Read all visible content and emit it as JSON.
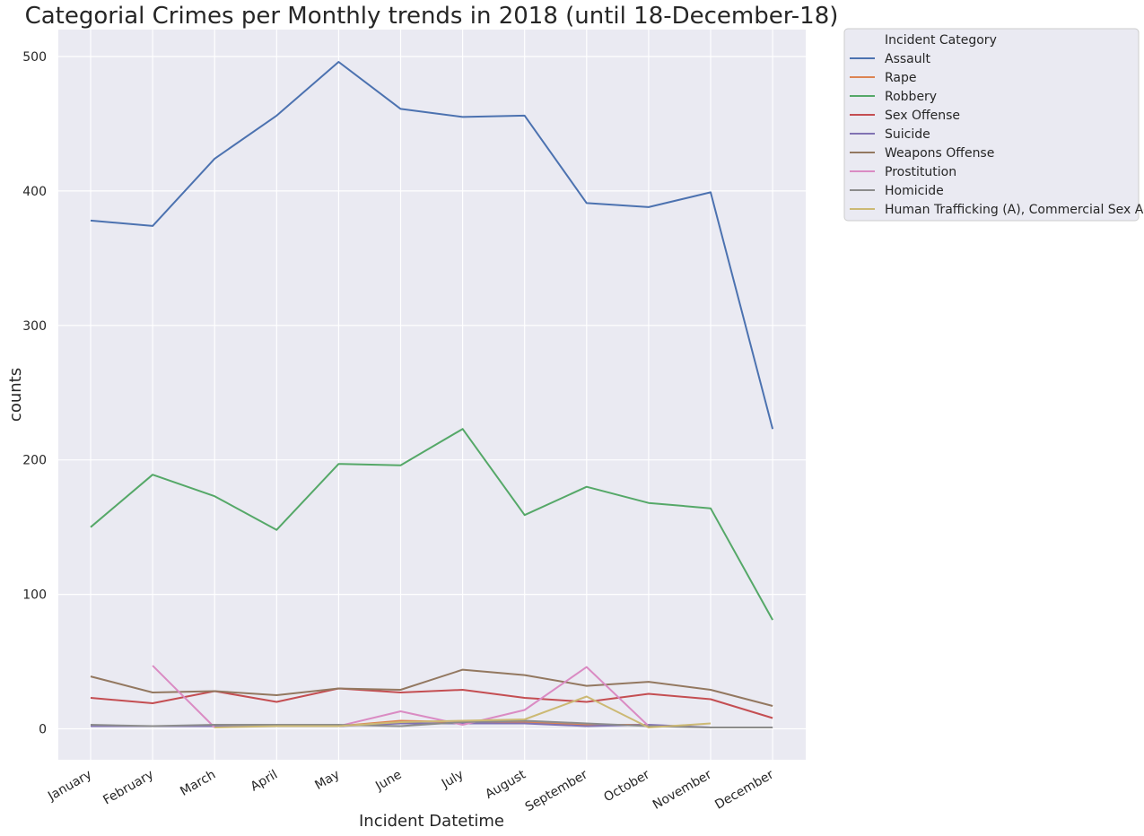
{
  "chart_data": {
    "type": "line",
    "title": "Categorial Crimes per Monthly trends in 2018 (until 18-December-18)",
    "xlabel": "Incident Datetime",
    "ylabel": "counts",
    "categories": [
      "January",
      "February",
      "March",
      "April",
      "May",
      "June",
      "July",
      "August",
      "September",
      "October",
      "November",
      "December"
    ],
    "ylim": [
      -23,
      520
    ],
    "yticks": [
      0,
      100,
      200,
      300,
      400,
      500
    ],
    "grid": true,
    "legend_title": "Incident Category",
    "legend_position": "outside-right-top",
    "series": [
      {
        "name": "Assault",
        "color": "#4c72b0",
        "values": [
          378,
          374,
          424,
          456,
          496,
          461,
          455,
          456,
          391,
          388,
          399,
          223
        ]
      },
      {
        "name": "Rape",
        "color": "#dd8452",
        "values": [
          2,
          2,
          2,
          2,
          2,
          6,
          5,
          5,
          3,
          3,
          null,
          null
        ]
      },
      {
        "name": "Robbery",
        "color": "#55a868",
        "values": [
          150,
          189,
          173,
          148,
          197,
          196,
          223,
          159,
          180,
          168,
          164,
          81
        ]
      },
      {
        "name": "Sex Offense",
        "color": "#c44e52",
        "values": [
          23,
          19,
          28,
          20,
          30,
          27,
          29,
          23,
          20,
          26,
          22,
          8
        ]
      },
      {
        "name": "Suicide",
        "color": "#8172b3",
        "values": [
          2,
          2,
          2,
          2,
          2,
          4,
          4,
          4,
          2,
          3,
          1,
          1
        ]
      },
      {
        "name": "Weapons Offense",
        "color": "#937860",
        "values": [
          39,
          27,
          28,
          25,
          30,
          29,
          44,
          40,
          32,
          35,
          29,
          17
        ]
      },
      {
        "name": "Prostitution",
        "color": "#da8bc3",
        "values": [
          null,
          47,
          1,
          null,
          2,
          13,
          3,
          14,
          46,
          2,
          null,
          null
        ]
      },
      {
        "name": "Homicide",
        "color": "#8c8c8c",
        "values": [
          3,
          2,
          3,
          3,
          3,
          2,
          5,
          6,
          4,
          2,
          1,
          1
        ]
      },
      {
        "name": "Human Trafficking (A), Commercial Sex Acts",
        "color": "#ccb974",
        "values": [
          null,
          null,
          1,
          2,
          2,
          5,
          6,
          7,
          24,
          1,
          4,
          null
        ]
      }
    ]
  }
}
